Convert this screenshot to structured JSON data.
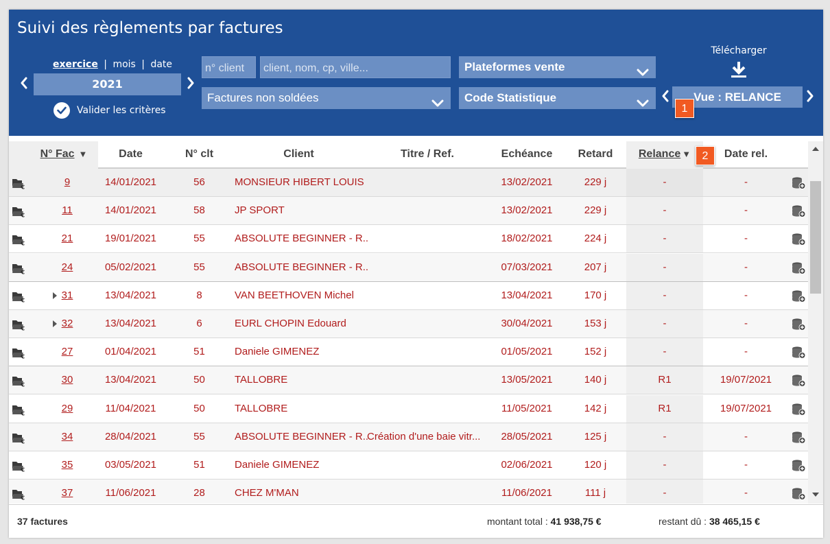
{
  "header": {
    "title": "Suivi des règlements par factures",
    "period_modes": [
      "exercice",
      "mois",
      "date"
    ],
    "period_separator": "|",
    "year": "2021",
    "validate_label": "Valider les critères",
    "client_number_placeholder": "n° client",
    "client_search_placeholder": "client, nom, cp, ville...",
    "invoice_status": "Factures non soldées",
    "platforms": "Plateformes vente",
    "stat_code": "Code Statistique",
    "download_label": "Télécharger",
    "view_label": "Vue : RELANCE",
    "badge_1": "1",
    "badge_2": "2"
  },
  "table": {
    "columns": [
      "N° Fac",
      "Date",
      "N° clt",
      "Client",
      "Titre / Ref.",
      "Echéance",
      "Retard",
      "Relance",
      "Date rel."
    ],
    "rows": [
      {
        "fac": "9",
        "date": "14/01/2021",
        "clt": "56",
        "client": "MONSIEUR HIBERT LOUIS",
        "titre": "",
        "echeance": "13/02/2021",
        "retard": "229 j",
        "relance": "-",
        "date_rel": "-"
      },
      {
        "fac": "11",
        "date": "14/01/2021",
        "clt": "58",
        "client": "JP SPORT",
        "titre": "",
        "echeance": "13/02/2021",
        "retard": "229 j",
        "relance": "-",
        "date_rel": "-"
      },
      {
        "fac": "21",
        "date": "19/01/2021",
        "clt": "55",
        "client": "ABSOLUTE BEGINNER - R...",
        "titre": "",
        "echeance": "18/02/2021",
        "retard": "224 j",
        "relance": "-",
        "date_rel": "-"
      },
      {
        "fac": "24",
        "date": "05/02/2021",
        "clt": "55",
        "client": "ABSOLUTE BEGINNER - R...",
        "titre": "",
        "echeance": "07/03/2021",
        "retard": "207 j",
        "relance": "-",
        "date_rel": "-"
      },
      {
        "fac": "31",
        "date": "13/04/2021",
        "clt": "8",
        "client": "VAN BEETHOVEN Michel",
        "titre": "",
        "echeance": "13/04/2021",
        "retard": "170 j",
        "relance": "-",
        "date_rel": "-"
      },
      {
        "fac": "32",
        "date": "13/04/2021",
        "clt": "6",
        "client": "EURL CHOPIN Edouard",
        "titre": "",
        "echeance": "30/04/2021",
        "retard": "153 j",
        "relance": "-",
        "date_rel": "-"
      },
      {
        "fac": "27",
        "date": "01/04/2021",
        "clt": "51",
        "client": "Daniele GIMENEZ",
        "titre": "",
        "echeance": "01/05/2021",
        "retard": "152 j",
        "relance": "-",
        "date_rel": "-"
      },
      {
        "fac": "30",
        "date": "13/04/2021",
        "clt": "50",
        "client": "TALLOBRE",
        "titre": "",
        "echeance": "13/05/2021",
        "retard": "140 j",
        "relance": "R1",
        "date_rel": "19/07/2021"
      },
      {
        "fac": "29",
        "date": "11/04/2021",
        "clt": "50",
        "client": "TALLOBRE",
        "titre": "",
        "echeance": "11/05/2021",
        "retard": "142 j",
        "relance": "R1",
        "date_rel": "19/07/2021"
      },
      {
        "fac": "34",
        "date": "28/04/2021",
        "clt": "55",
        "client": "ABSOLUTE BEGINNER - R...",
        "titre": "Création d'une baie vitr...",
        "echeance": "28/05/2021",
        "retard": "125 j",
        "relance": "-",
        "date_rel": "-"
      },
      {
        "fac": "35",
        "date": "03/05/2021",
        "clt": "51",
        "client": "Daniele GIMENEZ",
        "titre": "",
        "echeance": "02/06/2021",
        "retard": "120 j",
        "relance": "-",
        "date_rel": "-"
      },
      {
        "fac": "37",
        "date": "11/06/2021",
        "clt": "28",
        "client": "CHEZ M'MAN",
        "titre": "",
        "echeance": "11/06/2021",
        "retard": "111 j",
        "relance": "-",
        "date_rel": "-"
      }
    ]
  },
  "footer": {
    "count": "37 factures",
    "total_label": "montant total :",
    "total_value": "41 938,75 €",
    "remaining_label": "restant dû :",
    "remaining_value": "38 465,15 €"
  },
  "icons": {
    "row_left": "folder-euro-icon",
    "row_right": "coins-add-icon",
    "expand": "caret-right-icon",
    "download": "download-icon",
    "validate": "check-circle-icon"
  }
}
